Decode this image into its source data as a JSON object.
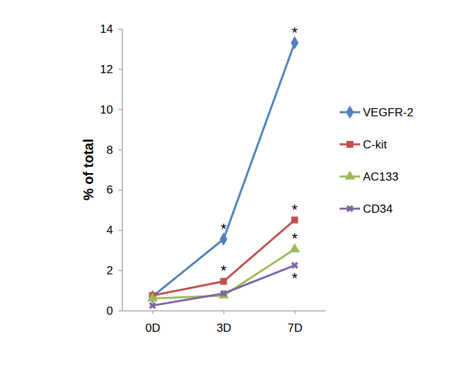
{
  "chart_data": {
    "type": "line",
    "y_label": "% of total",
    "categories": [
      "0D",
      "3D",
      "7D"
    ],
    "ylim": [
      0,
      14
    ],
    "yticks": [
      0,
      2,
      4,
      6,
      8,
      10,
      12,
      14
    ],
    "grid": false,
    "legend": "right",
    "series": [
      {
        "name": "VEGFR-2",
        "color": "#4f81bd",
        "marker": "diamond",
        "values": [
          0.7,
          3.55,
          13.3
        ],
        "annotations": [
          null,
          "*",
          "*"
        ]
      },
      {
        "name": "C-kit",
        "color": "#c0504d",
        "marker": "square",
        "values": [
          0.75,
          1.45,
          4.5
        ],
        "annotations": [
          null,
          "*",
          "*"
        ]
      },
      {
        "name": "AC133",
        "color": "#9bbb59",
        "marker": "triangle",
        "values": [
          0.6,
          0.75,
          3.05
        ],
        "annotations": [
          null,
          null,
          "*"
        ]
      },
      {
        "name": "CD34",
        "color": "#8064a2",
        "marker": "x",
        "values": [
          0.25,
          0.85,
          2.25
        ],
        "annotations": [
          null,
          null,
          "*"
        ]
      }
    ]
  }
}
